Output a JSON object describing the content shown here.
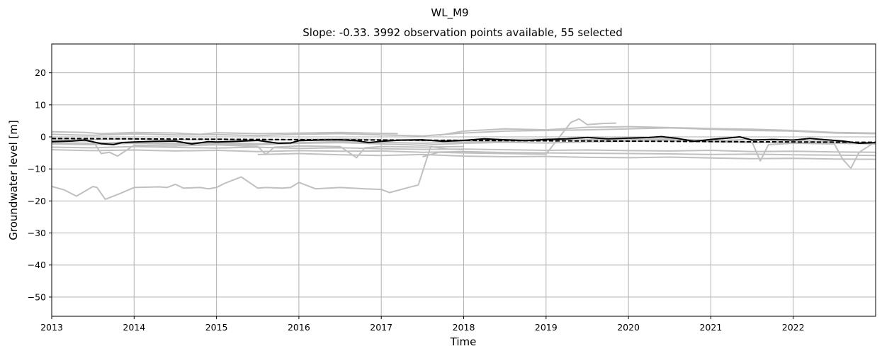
{
  "chart_data": {
    "type": "line",
    "suptitle": "WL_M9",
    "title": "Slope: -0.33. 3992 observation points available, 55 selected",
    "xlabel": "Time",
    "ylabel": "Groundwater level [m]",
    "xlim": [
      2013.0,
      2023.0
    ],
    "ylim": [
      -56,
      29
    ],
    "xticks": [
      2013,
      2014,
      2015,
      2016,
      2017,
      2018,
      2019,
      2020,
      2021,
      2022
    ],
    "xtick_labels": [
      "2013",
      "2014",
      "2015",
      "2016",
      "2017",
      "2018",
      "2019",
      "2020",
      "2021",
      "2022"
    ],
    "yticks": [
      20,
      10,
      0,
      -10,
      -20,
      -30,
      -40,
      -50
    ],
    "ytick_labels": [
      "20",
      "10",
      "0",
      "−10",
      "−20",
      "−30",
      "−40",
      "−50"
    ],
    "grid": true,
    "colors": {
      "individual": "#c0c0c0",
      "mean": "#000000",
      "trend": "#000000",
      "grid": "#b0b0b0"
    },
    "individual_series": [
      {
        "x": [
          2013.0,
          2013.4,
          2013.6,
          2013.8,
          2014.0,
          2014.5,
          2014.8,
          2015.0,
          2015.5,
          2016.0,
          2016.5,
          2017.0,
          2017.2
        ],
        "y": [
          1.6,
          1.4,
          1.0,
          1.2,
          1.4,
          1.2,
          0.8,
          1.3,
          1.0,
          1.2,
          1.4,
          1.1,
          1.0
        ]
      },
      {
        "x": [
          2013.0,
          2013.5,
          2014.0,
          2014.5,
          2015.0,
          2015.5,
          2016.0,
          2016.5,
          2017.0,
          2017.5,
          2018.0,
          2018.5,
          2019.0,
          2019.5,
          2020.0,
          2020.5,
          2021.0,
          2021.5,
          2022.0,
          2022.5,
          2023.0
        ],
        "y": [
          0.8,
          0.5,
          0.9,
          0.6,
          0.7,
          0.4,
          0.8,
          1.0,
          0.6,
          0.3,
          1.2,
          1.8,
          2.0,
          2.2,
          2.5,
          2.8,
          2.4,
          2.0,
          1.8,
          1.2,
          1.0
        ]
      },
      {
        "x": [
          2013.0,
          2013.5,
          2014.0,
          2014.5,
          2015.0,
          2015.5,
          2016.0,
          2016.5,
          2017.0,
          2017.5,
          2018.0,
          2018.5,
          2019.0,
          2019.5,
          2020.0,
          2020.5,
          2021.0,
          2021.5,
          2022.0,
          2022.5,
          2023.0
        ],
        "y": [
          -2.2,
          -2.4,
          -2.0,
          -2.3,
          -2.1,
          -2.5,
          -2.0,
          -1.8,
          -2.2,
          -2.6,
          -2.0,
          -1.7,
          -1.9,
          -1.6,
          -1.4,
          -1.2,
          -1.5,
          -1.8,
          -1.6,
          -2.0,
          -2.2
        ]
      },
      {
        "x": [
          2013.0,
          2013.5,
          2014.0,
          2014.5,
          2015.0,
          2015.5,
          2016.0,
          2016.5,
          2017.0,
          2017.5,
          2018.0,
          2018.5,
          2019.0,
          2019.5,
          2020.0,
          2020.5,
          2021.0,
          2021.5,
          2022.0,
          2022.5,
          2023.0
        ],
        "y": [
          -4.0,
          -4.3,
          -4.1,
          -4.4,
          -4.2,
          -4.6,
          -4.3,
          -4.5,
          -4.4,
          -4.8,
          -4.6,
          -4.9,
          -5.0,
          -5.1,
          -5.2,
          -5.3,
          -5.5,
          -5.4,
          -5.6,
          -5.7,
          -5.8
        ]
      },
      {
        "x": [
          2013.0,
          2013.5,
          2014.0,
          2014.5,
          2015.0,
          2015.5,
          2016.0,
          2016.5,
          2017.0,
          2017.5,
          2018.0,
          2018.5,
          2019.0,
          2019.5,
          2020.0,
          2020.5,
          2021.0,
          2021.5,
          2022.0,
          2022.5,
          2023.0
        ],
        "y": [
          -3.2,
          -3.4,
          -3.0,
          -3.3,
          -3.5,
          -3.2,
          -3.6,
          -3.4,
          -3.7,
          -3.9,
          -3.8,
          -4.0,
          -4.2,
          -4.1,
          -4.3,
          -4.4,
          -4.2,
          -4.6,
          -4.5,
          -4.7,
          -4.8
        ]
      },
      {
        "x": [
          2013.0,
          2013.5,
          2013.6,
          2013.7,
          2013.8,
          2014.0,
          2014.5,
          2015.0,
          2015.5,
          2015.6,
          2015.7,
          2016.0,
          2016.5,
          2016.7,
          2016.8,
          2017.0,
          2017.5,
          2018.0
        ],
        "y": [
          -1.0,
          -1.3,
          -5.2,
          -4.8,
          -6.0,
          -2.6,
          -2.8,
          -2.5,
          -3.0,
          -5.5,
          -3.2,
          -2.8,
          -3.0,
          -6.5,
          -3.4,
          -3.0,
          -3.2,
          -3.0
        ]
      },
      {
        "x": [
          2013.0,
          2013.15,
          2013.3,
          2013.5,
          2013.55,
          2013.65,
          2013.8,
          2014.0,
          2014.3,
          2014.4,
          2014.5,
          2014.6,
          2014.8,
          2014.9,
          2015.0,
          2015.1,
          2015.3,
          2015.5,
          2015.6,
          2015.8,
          2015.9,
          2016.0,
          2016.2,
          2016.5,
          2016.8,
          2017.0,
          2017.1,
          2017.3,
          2017.45,
          2017.6,
          2017.8,
          2018.0
        ],
        "y": [
          -15.5,
          -16.5,
          -18.5,
          -15.5,
          -15.8,
          -19.5,
          -18.0,
          -15.8,
          -15.6,
          -15.8,
          -14.8,
          -16.0,
          -15.8,
          -16.2,
          -15.8,
          -14.5,
          -12.5,
          -16.0,
          -15.8,
          -16.0,
          -15.8,
          -14.2,
          -16.2,
          -15.8,
          -16.2,
          -16.4,
          -17.4,
          -16.0,
          -15.0,
          -3.0,
          -3.8,
          -4.0
        ]
      },
      {
        "x": [
          2017.5,
          2017.7,
          2018.0,
          2018.5,
          2019.0,
          2019.3,
          2019.4,
          2019.5,
          2019.7,
          2019.85
        ],
        "y": [
          -6.2,
          -4.8,
          -5.0,
          -5.2,
          -5.4,
          4.5,
          5.6,
          3.8,
          4.2,
          4.3
        ]
      },
      {
        "x": [
          2013.0,
          2013.5,
          2014.0,
          2014.5,
          2015.0,
          2015.5,
          2016.0,
          2016.5,
          2017.0,
          2017.5,
          2018.0,
          2018.5,
          2019.0,
          2019.5,
          2020.0,
          2020.5,
          2021.0,
          2021.5,
          2021.6,
          2021.7,
          2022.0,
          2022.5,
          2022.6,
          2022.7,
          2022.8,
          2023.0
        ],
        "y": [
          -0.5,
          -0.8,
          -0.6,
          -0.9,
          -0.7,
          -1.0,
          -0.8,
          -0.6,
          -0.9,
          -1.2,
          -1.0,
          -0.8,
          -0.7,
          -1.1,
          -0.9,
          -0.6,
          -1.2,
          -1.6,
          -7.5,
          -2.4,
          -2.0,
          -2.2,
          -7.0,
          -9.8,
          -4.8,
          -1.5
        ]
      },
      {
        "x": [
          2013.0,
          2013.5,
          2014.0,
          2014.5,
          2015.0,
          2015.5,
          2016.0,
          2016.5,
          2017.0,
          2017.5,
          2018.0,
          2018.5,
          2019.0,
          2019.5,
          2020.0,
          2020.5,
          2021.0,
          2021.5,
          2022.0,
          2022.5,
          2023.0
        ],
        "y": [
          -1.8,
          -2.0,
          -1.6,
          -1.9,
          -1.7,
          -2.1,
          -1.8,
          -1.5,
          -1.7,
          -2.0,
          -1.6,
          -1.3,
          -1.1,
          -0.9,
          -0.7,
          -0.9,
          -1.2,
          -0.8,
          -1.0,
          -1.6,
          -1.9
        ]
      },
      {
        "x": [
          2015.5,
          2016.0,
          2016.5,
          2017.0,
          2017.5,
          2018.0,
          2018.5,
          2019.0,
          2019.5,
          2020.0,
          2020.5,
          2021.0,
          2021.5,
          2022.0,
          2022.5,
          2023.0
        ],
        "y": [
          -5.5,
          -5.2,
          -5.6,
          -5.8,
          -5.5,
          -6.0,
          -6.2,
          -6.1,
          -6.4,
          -6.5,
          -6.3,
          -6.6,
          -6.8,
          -6.7,
          -6.9,
          -7.0
        ]
      },
      {
        "x": [
          2017.7,
          2018.0,
          2018.5,
          2019.0,
          2019.5,
          2020.0,
          2020.5,
          2021.0,
          2021.5,
          2022.0,
          2022.5,
          2023.0
        ],
        "y": [
          0.5,
          1.8,
          2.5,
          2.2,
          3.0,
          3.2,
          2.9,
          2.6,
          2.4,
          2.0,
          1.4,
          1.2
        ]
      }
    ],
    "mean_series": {
      "x": [
        2013.0,
        2013.25,
        2013.4,
        2013.6,
        2013.75,
        2013.85,
        2014.0,
        2014.25,
        2014.5,
        2014.7,
        2014.9,
        2015.0,
        2015.25,
        2015.5,
        2015.75,
        2015.9,
        2016.0,
        2016.25,
        2016.5,
        2016.7,
        2016.85,
        2017.0,
        2017.25,
        2017.5,
        2017.75,
        2018.0,
        2018.25,
        2018.5,
        2018.75,
        2019.0,
        2019.25,
        2019.5,
        2019.75,
        2020.0,
        2020.25,
        2020.4,
        2020.6,
        2020.8,
        2021.0,
        2021.2,
        2021.35,
        2021.5,
        2021.75,
        2022.0,
        2022.2,
        2022.4,
        2022.6,
        2022.8,
        2023.0
      ],
      "y": [
        -1.5,
        -1.3,
        -1.0,
        -2.1,
        -2.4,
        -1.8,
        -1.6,
        -1.4,
        -1.3,
        -2.2,
        -1.5,
        -1.6,
        -1.4,
        -1.1,
        -2.0,
        -1.9,
        -1.2,
        -1.0,
        -0.9,
        -1.2,
        -1.8,
        -1.4,
        -1.0,
        -0.9,
        -1.4,
        -1.1,
        -0.6,
        -0.9,
        -1.2,
        -0.8,
        -0.6,
        -0.2,
        -0.6,
        -0.4,
        -0.2,
        0.1,
        -0.5,
        -1.4,
        -0.8,
        -0.4,
        0.0,
        -1.0,
        -0.8,
        -1.0,
        -0.5,
        -0.9,
        -1.3,
        -2.0,
        -1.8
      ]
    },
    "trend_line": {
      "x": [
        2013.0,
        2023.0
      ],
      "y": [
        -0.5,
        -1.7
      ]
    }
  }
}
